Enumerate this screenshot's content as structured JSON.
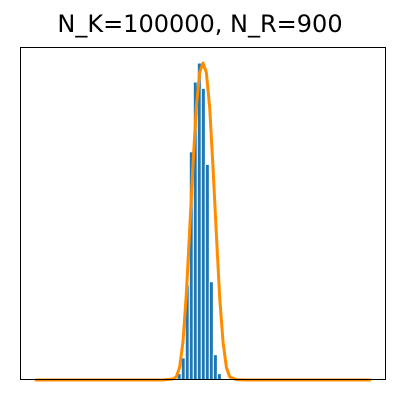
{
  "chart_data": {
    "type": "bar",
    "title": "N_K=100000, N_R=900",
    "xlabel": "",
    "ylabel": "",
    "x_ticks": false,
    "y_ticks": false,
    "grid": false,
    "legend": "none",
    "xlim": [
      0,
      100
    ],
    "ylim": [
      0,
      100
    ],
    "bars": {
      "name": "",
      "color": "#1f77b4",
      "edgecolor": "#ffffff",
      "x": [
        42.9,
        44.1,
        45.3,
        46.5,
        47.7,
        48.9,
        50.1,
        51.3,
        52.5,
        53.7,
        54.9
      ],
      "values": [
        2,
        7,
        30,
        72,
        94,
        100,
        92,
        68,
        31,
        8,
        2
      ],
      "bin_width": 1.2
    },
    "fit_curve": {
      "name": "",
      "color": "#ff8c00",
      "x": [
        0,
        38,
        41,
        42,
        43,
        44,
        45,
        46,
        47,
        48,
        49,
        50,
        51,
        52,
        53,
        54,
        55,
        56,
        57,
        58,
        60,
        63,
        100
      ],
      "values": [
        0,
        0,
        0.3,
        1,
        4,
        12,
        27,
        47,
        68,
        86,
        97,
        100,
        97,
        86,
        67,
        46,
        26,
        12,
        4,
        1,
        0.1,
        0,
        0
      ]
    }
  }
}
